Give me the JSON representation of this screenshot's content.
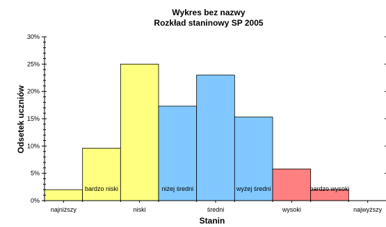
{
  "chart_data": {
    "type": "bar",
    "title": "Wykres bez nazwy",
    "subtitle": "Rozkład staninowy SP 2005",
    "xlabel": "Stanin",
    "ylabel": "Odsetek uczniów",
    "ylim": [
      0,
      30
    ],
    "y_ticks": [
      "0%",
      "5%",
      "10%",
      "15%",
      "20%",
      "25%",
      "30%"
    ],
    "grid": false,
    "x_tick_labels": [
      "najniższy",
      "niski",
      "średni",
      "wysoki",
      "najwyższy"
    ],
    "categories": [
      "1",
      "2",
      "3",
      "4",
      "5",
      "6",
      "7",
      "8",
      "9"
    ],
    "values": [
      2,
      9.6,
      25,
      17.3,
      23,
      15.3,
      5.8,
      2,
      0
    ],
    "colors": [
      "#ffff80",
      "#ffff80",
      "#ffff80",
      "#80c8ff",
      "#80c8ff",
      "#80c8ff",
      "#ff8080",
      "#ff8080",
      "#ff8080"
    ],
    "annotations": [
      "bardzo niski",
      "niżej średni",
      "wyżej średni",
      "bardzo wysoki"
    ]
  }
}
